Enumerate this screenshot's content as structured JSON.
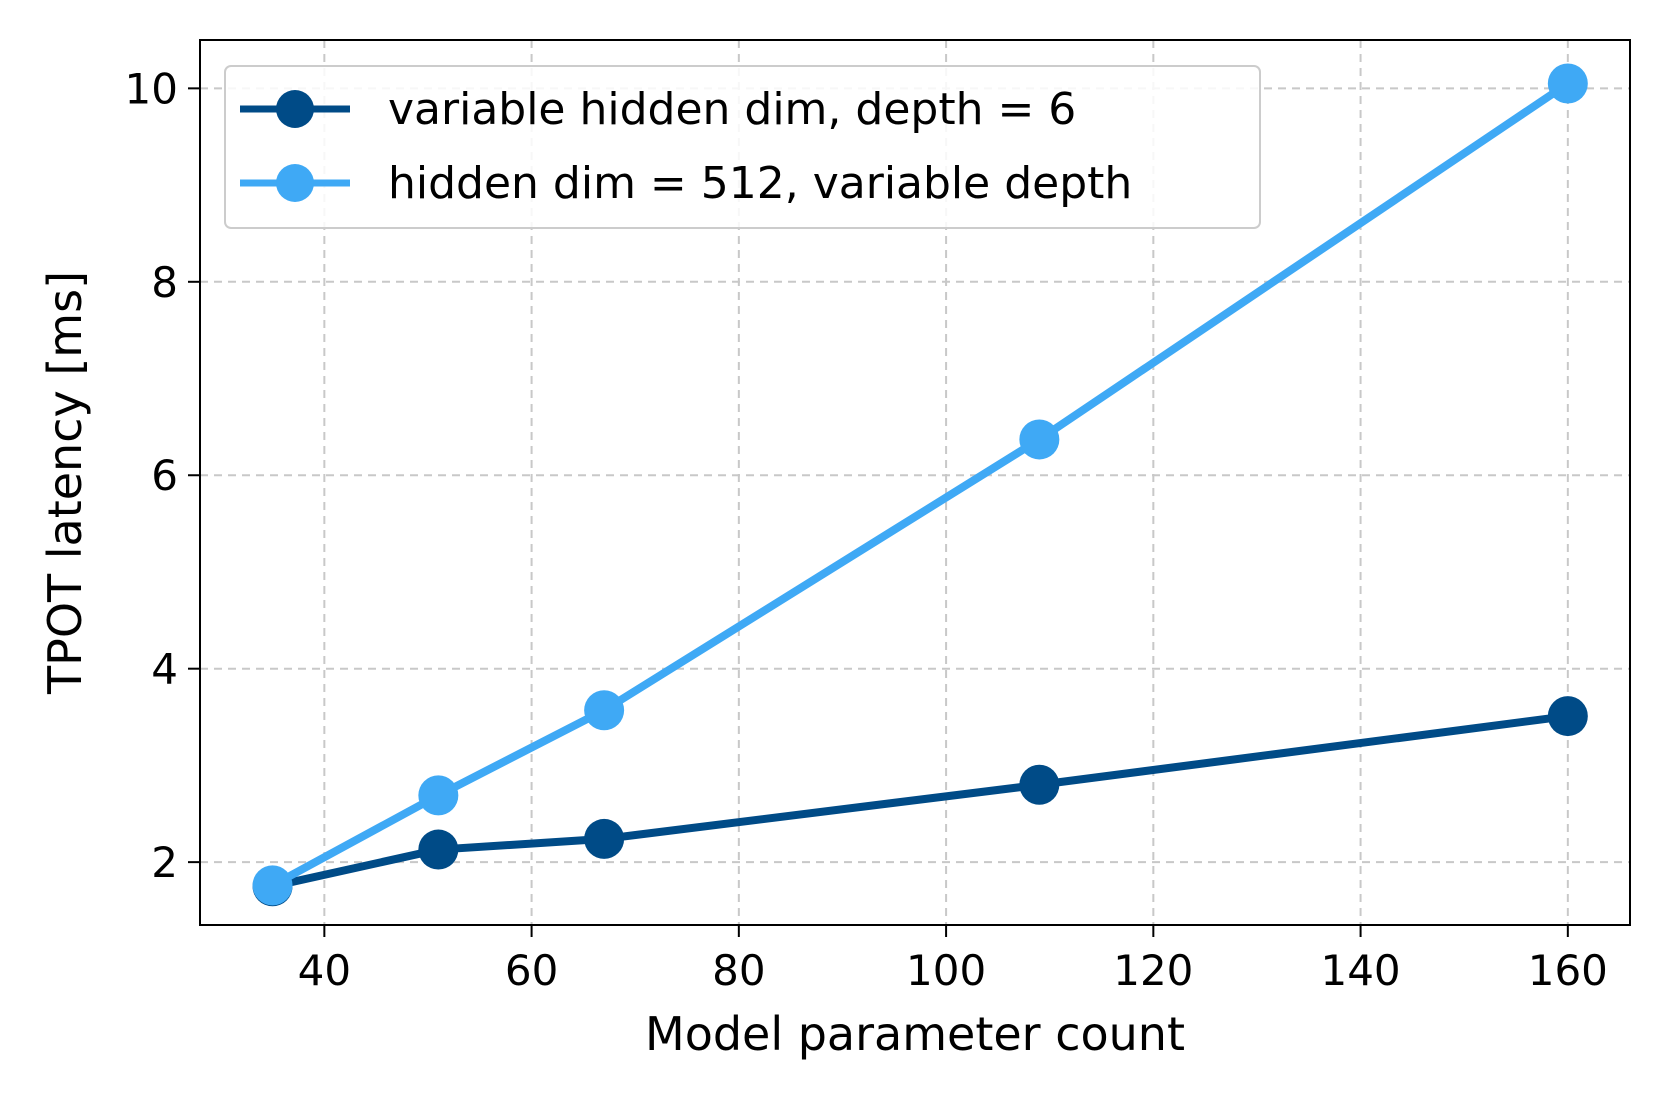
{
  "chart_data": {
    "type": "line",
    "xlabel": "Model parameter count",
    "ylabel": "TPOT latency [ms]",
    "xlim": [
      28,
      166
    ],
    "ylim": [
      1.35,
      10.5
    ],
    "xticks": [
      40,
      60,
      80,
      100,
      120,
      140,
      160
    ],
    "yticks": [
      2,
      4,
      6,
      8,
      10
    ],
    "grid": true,
    "legend_position": "top-left",
    "series": [
      {
        "name": "variable hidden dim, depth = 6",
        "color": "#004b87",
        "points": [
          {
            "x": 35,
            "y": 1.75
          },
          {
            "x": 51,
            "y": 2.13
          },
          {
            "x": 67,
            "y": 2.24
          },
          {
            "x": 109,
            "y": 2.8
          },
          {
            "x": 160,
            "y": 3.51
          }
        ]
      },
      {
        "name": "hidden dim = 512, variable depth",
        "color": "#3fa9f5",
        "points": [
          {
            "x": 35,
            "y": 1.76
          },
          {
            "x": 51,
            "y": 2.69
          },
          {
            "x": 67,
            "y": 3.57
          },
          {
            "x": 109,
            "y": 6.37
          },
          {
            "x": 160,
            "y": 10.05
          }
        ]
      }
    ]
  }
}
